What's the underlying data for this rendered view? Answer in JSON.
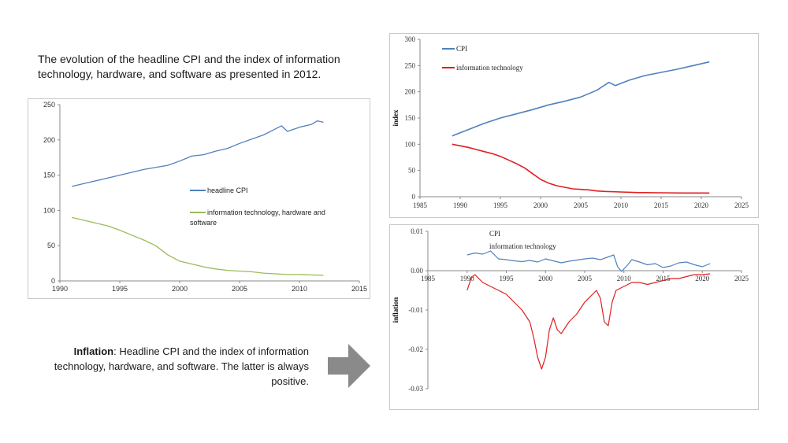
{
  "captions": {
    "top": "The evolution of the headline CPI and the index of information technology, hardware, and software as presented in 2012.",
    "bottom_bold": "Inflation",
    "bottom_rest": ": Headline CPI and the index of information technology, hardware, and software. The latter is always positive."
  },
  "colors": {
    "blue": "#4f81bd",
    "green": "#9bbb59",
    "red": "#e02020",
    "arrow": "#8a8a8a"
  },
  "icons": {
    "arrow": "right-arrow-icon"
  },
  "chart_data": [
    {
      "type": "line",
      "title": "",
      "xlabel": "",
      "ylabel": "",
      "xlim": [
        1990,
        2015
      ],
      "ylim": [
        0,
        250
      ],
      "xticks": [
        1990,
        1995,
        2000,
        2005,
        2010,
        2015
      ],
      "yticks": [
        0,
        50,
        100,
        150,
        200,
        250
      ],
      "legend_position": "center-right",
      "grid": false,
      "series": [
        {
          "name": "headline CPI",
          "color": "#4f81bd",
          "x": [
            1991,
            1993,
            1995,
            1997,
            1999,
            2000,
            2001,
            2002,
            2003,
            2004,
            2005,
            2006,
            2007,
            2007.8,
            2008.5,
            2009,
            2010,
            2011,
            2011.5,
            2012
          ],
          "y": [
            134,
            142,
            150,
            158,
            164,
            170,
            177,
            179,
            184,
            188,
            195,
            201,
            207,
            214,
            220,
            212,
            218,
            222,
            227,
            225
          ]
        },
        {
          "name": "information technology, hardware and software",
          "color": "#9bbb59",
          "x": [
            1991,
            1992,
            1993,
            1994,
            1995,
            1996,
            1997,
            1998,
            1999,
            2000,
            2001,
            2002,
            2003,
            2004,
            2005,
            2006,
            2007,
            2008,
            2009,
            2010,
            2011,
            2012
          ],
          "y": [
            90,
            86,
            82,
            78,
            72,
            65,
            58,
            50,
            37,
            28,
            24,
            20,
            17,
            15,
            14,
            13,
            11,
            10,
            9,
            9,
            8.5,
            8
          ]
        }
      ]
    },
    {
      "type": "line",
      "title": "",
      "xlabel": "",
      "ylabel": "index",
      "xlim": [
        1985,
        2025
      ],
      "ylim": [
        0,
        300
      ],
      "xticks": [
        1985,
        1990,
        1995,
        2000,
        2005,
        2010,
        2015,
        2020,
        2025
      ],
      "yticks": [
        0,
        50,
        100,
        150,
        200,
        250,
        300
      ],
      "legend_position": "top-left",
      "grid": false,
      "series": [
        {
          "name": "CPI",
          "color": "#4f81bd",
          "x": [
            1989,
            1991,
            1993,
            1995,
            1997,
            1999,
            2001,
            2003,
            2005,
            2007,
            2008.5,
            2009.3,
            2011,
            2013,
            2015,
            2017,
            2019,
            2021
          ],
          "y": [
            116,
            128,
            140,
            150,
            158,
            166,
            175,
            182,
            190,
            203,
            218,
            212,
            222,
            231,
            237,
            243,
            250,
            257
          ]
        },
        {
          "name": "information technology",
          "color": "#e02020",
          "x": [
            1989,
            1990,
            1991,
            1992,
            1993,
            1994,
            1995,
            1996,
            1997,
            1998,
            1999,
            2000,
            2001,
            2002,
            2003,
            2004,
            2005,
            2006,
            2007,
            2008,
            2010,
            2012,
            2015,
            2018,
            2021
          ],
          "y": [
            100,
            97,
            94,
            90,
            86,
            82,
            77,
            70,
            63,
            55,
            44,
            33,
            26,
            21,
            18,
            15,
            14,
            13,
            11,
            10,
            9,
            8,
            7.5,
            7,
            7
          ]
        }
      ]
    },
    {
      "type": "line",
      "title": "",
      "xlabel": "",
      "ylabel": "inflation",
      "xlim": [
        1985,
        2025
      ],
      "ylim": [
        -0.03,
        0.01
      ],
      "xticks": [
        1985,
        1990,
        1995,
        2000,
        2005,
        2010,
        2015,
        2020,
        2025
      ],
      "yticks": [
        0.01,
        0.0,
        -0.01,
        -0.02,
        -0.03
      ],
      "ytick_labels": [
        "0.01",
        "0.00",
        "-0.01",
        "-0.02",
        "-0.03"
      ],
      "legend_position": "top-left",
      "grid": false,
      "series": [
        {
          "name": "CPI",
          "color": "#4f81bd",
          "x": [
            1990,
            1991,
            1992,
            1993,
            1994,
            1995,
            1996,
            1997,
            1998,
            1999,
            2000,
            2001,
            2002,
            2003,
            2004,
            2005,
            2006,
            2007,
            2008,
            2008.7,
            2009.2,
            2009.7,
            2010.5,
            2011,
            2012,
            2013,
            2014,
            2015,
            2016,
            2017,
            2018,
            2019,
            2020,
            2021
          ],
          "y": [
            0.004,
            0.0045,
            0.0042,
            0.005,
            0.003,
            0.0028,
            0.0025,
            0.0023,
            0.0026,
            0.0022,
            0.003,
            0.0025,
            0.002,
            0.0024,
            0.0027,
            0.003,
            0.0032,
            0.0028,
            0.0035,
            0.004,
            0.001,
            -0.0002,
            0.0015,
            0.0028,
            0.0022,
            0.0015,
            0.0018,
            0.0008,
            0.0012,
            0.002,
            0.0022,
            0.0015,
            0.001,
            0.0018
          ]
        },
        {
          "name": "information technology",
          "color": "#e02020",
          "x": [
            1990,
            1990.5,
            1991,
            1992,
            1993,
            1994,
            1995,
            1996,
            1997,
            1998,
            1998.5,
            1999,
            1999.5,
            2000,
            2000.5,
            2001,
            2001.5,
            2002,
            2003,
            2004,
            2005,
            2006,
            2006.5,
            2007,
            2007.5,
            2008,
            2008.5,
            2009,
            2010,
            2011,
            2012,
            2013,
            2014,
            2015,
            2016,
            2017,
            2018,
            2019,
            2020,
            2021
          ],
          "y": [
            -0.005,
            -0.002,
            -0.001,
            -0.003,
            -0.004,
            -0.005,
            -0.006,
            -0.008,
            -0.01,
            -0.013,
            -0.017,
            -0.022,
            -0.025,
            -0.022,
            -0.015,
            -0.012,
            -0.015,
            -0.016,
            -0.013,
            -0.011,
            -0.008,
            -0.006,
            -0.005,
            -0.007,
            -0.013,
            -0.014,
            -0.008,
            -0.005,
            -0.004,
            -0.003,
            -0.003,
            -0.0035,
            -0.003,
            -0.0025,
            -0.002,
            -0.002,
            -0.0015,
            -0.001,
            -0.001,
            -0.0008
          ]
        }
      ]
    }
  ]
}
